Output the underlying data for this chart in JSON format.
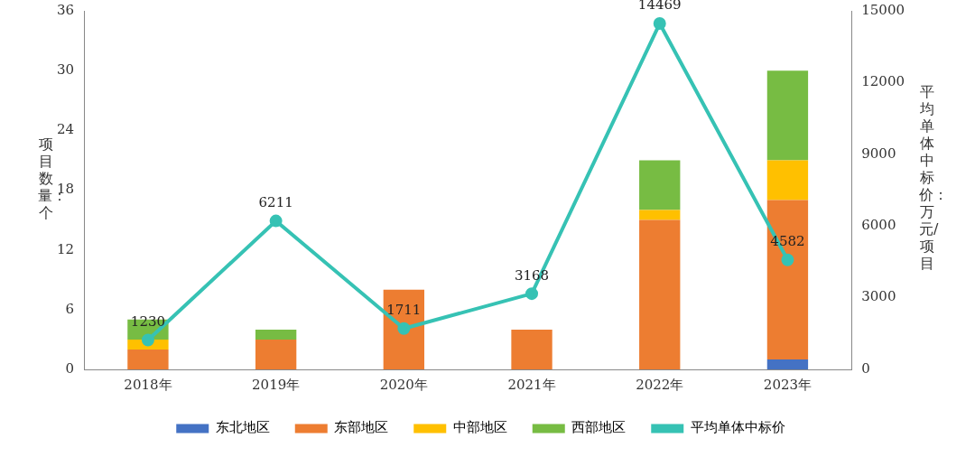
{
  "chart_data": {
    "type": "bar",
    "stacked": true,
    "ylabel": "项目数量：个",
    "y2label": "平均单体中标价：万元/项目",
    "categories": [
      "2018年",
      "2019年",
      "2020年",
      "2021年",
      "2022年",
      "2023年"
    ],
    "ylim": [
      0,
      36
    ],
    "yticks": [
      0,
      6,
      12,
      18,
      24,
      30,
      36
    ],
    "y2lim": [
      0,
      15000
    ],
    "y2ticks": [
      0,
      3000,
      6000,
      9000,
      12000,
      15000
    ],
    "grid": false,
    "legend": "bottom",
    "marker": "circle",
    "series": [
      {
        "name": "东北地区",
        "color": "#4472c4",
        "values": [
          0,
          0,
          0,
          0,
          0,
          1
        ]
      },
      {
        "name": "东部地区",
        "color": "#ed7d31",
        "values": [
          2,
          3,
          8,
          4,
          15,
          16
        ]
      },
      {
        "name": "中部地区",
        "color": "#ffc000",
        "values": [
          1,
          0,
          0,
          0,
          1,
          4
        ]
      },
      {
        "name": "西部地区",
        "color": "#77bc43",
        "values": [
          2,
          1,
          0,
          0,
          5,
          9
        ]
      },
      {
        "name": "平均单体中标价",
        "type": "line",
        "axis": "y2",
        "color": "#36c2b4",
        "values": [
          1230,
          6211,
          1711,
          3168,
          14469,
          4582
        ],
        "value_labels": [
          "1230",
          "6211",
          "1711",
          "3168",
          "14469",
          "4582"
        ]
      }
    ]
  }
}
